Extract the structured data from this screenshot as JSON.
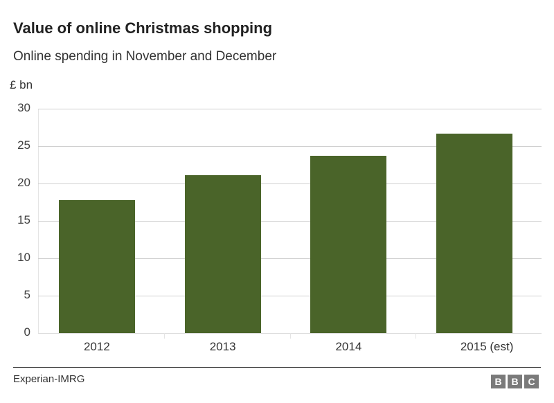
{
  "header": {
    "title": "Value of online Christmas shopping",
    "subtitle": "Online spending in November and December",
    "unit": "£ bn"
  },
  "footer": {
    "source": "Experian-IMRG",
    "logo_letters": [
      "B",
      "B",
      "C"
    ]
  },
  "colors": {
    "bar": "#4a6429",
    "grid": "#cfcfcf",
    "logo_bg": "#7a7a7a"
  },
  "chart_data": {
    "type": "bar",
    "title": "Value of online Christmas shopping",
    "subtitle": "Online spending in November and December",
    "xlabel": "",
    "ylabel": "£ bn",
    "categories": [
      "2012",
      "2013",
      "2014",
      "2015 (est)"
    ],
    "values": [
      17.8,
      21.1,
      23.7,
      26.7
    ],
    "ylim": [
      0,
      30
    ],
    "yticks": [
      0,
      5,
      10,
      15,
      20,
      25,
      30
    ],
    "grid": true,
    "legend": null,
    "source": "Experian-IMRG"
  }
}
